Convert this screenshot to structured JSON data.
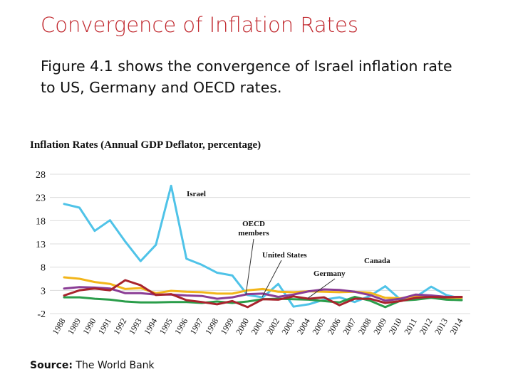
{
  "slide": {
    "title": "Convergence of Inflation Rates",
    "body": "Figure 4.1 shows the convergence of Israel inflation rate to US, Germany and OECD rates.",
    "source_label": "Source:",
    "source_value": "The World Bank"
  },
  "chart_data": {
    "type": "line",
    "title": "Inflation Rates (Annual GDP Deflator, percentage)",
    "xlabel": "",
    "ylabel": "",
    "ylim": [
      -2,
      28
    ],
    "yticks": [
      28,
      23,
      18,
      13,
      8,
      3,
      -2
    ],
    "grid": true,
    "categories": [
      "1988",
      "1989",
      "1990",
      "1991",
      "1992",
      "1993",
      "1994",
      "1995",
      "1996",
      "1997",
      "1998",
      "1999",
      "2000",
      "2001",
      "2002",
      "2003",
      "2004",
      "2005",
      "2006",
      "2007",
      "2008",
      "2009",
      "2010",
      "2011",
      "2012",
      "2013",
      "2014"
    ],
    "series": [
      {
        "name": "Israel",
        "color": "#4fc3e8",
        "values": [
          21.6,
          20.8,
          15.8,
          18.1,
          13.5,
          9.3,
          12.8,
          25.5,
          9.8,
          8.5,
          6.8,
          6.2,
          2.0,
          1.5,
          4.4,
          -0.5,
          0.0,
          1.0,
          1.5,
          0.5,
          1.8,
          3.9,
          1.0,
          1.6,
          3.8,
          2.0,
          1.2
        ]
      },
      {
        "name": "OECD members",
        "color": "#f2b51a",
        "values": [
          5.8,
          5.5,
          4.8,
          4.4,
          3.3,
          3.5,
          2.4,
          2.9,
          2.7,
          2.6,
          2.3,
          2.3,
          3.0,
          3.3,
          2.7,
          2.6,
          2.8,
          2.7,
          2.6,
          2.7,
          2.5,
          1.4,
          1.3,
          1.7,
          1.5,
          1.4,
          1.4
        ]
      },
      {
        "name": "United States",
        "color": "#8a3c95",
        "values": [
          3.4,
          3.7,
          3.6,
          3.4,
          2.4,
          2.4,
          2.1,
          2.1,
          1.9,
          1.8,
          1.2,
          1.5,
          2.2,
          2.3,
          1.6,
          2.1,
          2.8,
          3.2,
          3.1,
          2.7,
          2.0,
          0.8,
          1.2,
          2.1,
          1.9,
          1.6,
          1.6
        ]
      },
      {
        "name": "Germany",
        "color": "#2a9d4a",
        "values": [
          1.5,
          1.5,
          1.2,
          1.0,
          0.6,
          0.4,
          0.4,
          0.5,
          0.5,
          0.3,
          0.6,
          0.3,
          0.6,
          1.1,
          1.2,
          1.1,
          1.0,
          0.7,
          0.4,
          1.6,
          0.8,
          -0.6,
          0.8,
          1.0,
          1.4,
          1.0,
          0.9
        ]
      },
      {
        "name": "Canada",
        "color": "#a8232d",
        "values": [
          1.9,
          3.0,
          3.4,
          3.0,
          5.2,
          4.1,
          2.0,
          2.2,
          0.9,
          0.5,
          0.0,
          0.7,
          -0.6,
          1.1,
          1.0,
          1.7,
          1.2,
          1.5,
          -0.2,
          1.2,
          1.2,
          0.3,
          0.7,
          1.4,
          1.6,
          1.5,
          1.6
        ]
      }
    ],
    "annotations": [
      {
        "text": "Israel",
        "series": "Israel",
        "x": "1995"
      },
      {
        "text": "OECD members",
        "series": "OECD members",
        "x": "2001"
      },
      {
        "text": "United States",
        "series": "United States",
        "x": "2004"
      },
      {
        "text": "Canada",
        "series": "Canada",
        "x": "2010"
      },
      {
        "text": "Germany",
        "series": "Germany",
        "x": "2007"
      }
    ]
  }
}
